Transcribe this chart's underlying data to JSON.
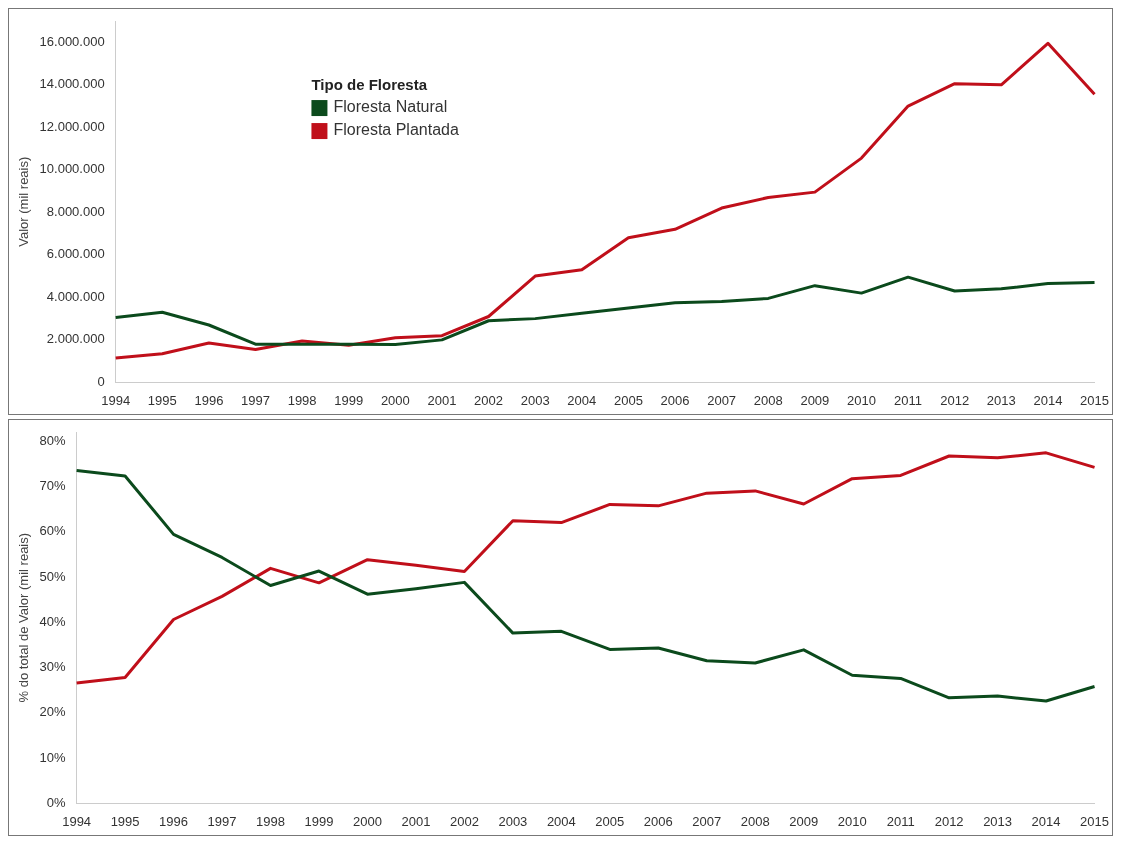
{
  "chart_data": [
    {
      "type": "line",
      "ylabel": "Valor (mil reais)",
      "legend_title": "Tipo de Floresta",
      "legend": "top left",
      "grid": false,
      "categories": [
        "1994",
        "1995",
        "1996",
        "1997",
        "1998",
        "1999",
        "2000",
        "2001",
        "2002",
        "2003",
        "2004",
        "2005",
        "2006",
        "2007",
        "2008",
        "2009",
        "2010",
        "2011",
        "2012",
        "2013",
        "2014",
        "2015"
      ],
      "ylim": [
        0,
        17000000
      ],
      "yticks": [
        {
          "value": 0,
          "label": "0"
        },
        {
          "value": 2000000,
          "label": "2.000.000"
        },
        {
          "value": 4000000,
          "label": "4.000.000"
        },
        {
          "value": 6000000,
          "label": "6.000.000"
        },
        {
          "value": 8000000,
          "label": "8.000.000"
        },
        {
          "value": 10000000,
          "label": "10.000.000"
        },
        {
          "value": 12000000,
          "label": "12.000.000"
        },
        {
          "value": 14000000,
          "label": "14.000.000"
        },
        {
          "value": 16000000,
          "label": "16.000.000"
        }
      ],
      "series": [
        {
          "name": "Floresta Natural",
          "color": "#0b4a1c",
          "values": [
            3050000,
            3300000,
            2700000,
            1800000,
            1800000,
            1800000,
            1780000,
            2000000,
            2900000,
            3000000,
            3250000,
            3500000,
            3750000,
            3800000,
            3950000,
            4550000,
            4200000,
            4950000,
            4300000,
            4400000,
            4650000,
            4700000
          ]
        },
        {
          "name": "Floresta Plantada",
          "color": "#c00f1a",
          "values": [
            1150000,
            1350000,
            1850000,
            1550000,
            1950000,
            1750000,
            2100000,
            2200000,
            3100000,
            5000000,
            5300000,
            6800000,
            7200000,
            8200000,
            8700000,
            8950000,
            10550000,
            13000000,
            14050000,
            14000000,
            15950000,
            13550000
          ]
        }
      ]
    },
    {
      "type": "line",
      "ylabel": "% do total de Valor (mil reais)",
      "grid": false,
      "categories": [
        "1994",
        "1995",
        "1996",
        "1997",
        "1998",
        "1999",
        "2000",
        "2001",
        "2002",
        "2003",
        "2004",
        "2005",
        "2006",
        "2007",
        "2008",
        "2009",
        "2010",
        "2011",
        "2012",
        "2013",
        "2014",
        "2015"
      ],
      "ylim": [
        0,
        82
      ],
      "yticks": [
        {
          "value": 0,
          "label": "0%"
        },
        {
          "value": 10,
          "label": "10%"
        },
        {
          "value": 20,
          "label": "20%"
        },
        {
          "value": 30,
          "label": "30%"
        },
        {
          "value": 40,
          "label": "40%"
        },
        {
          "value": 50,
          "label": "50%"
        },
        {
          "value": 60,
          "label": "60%"
        },
        {
          "value": 70,
          "label": "70%"
        },
        {
          "value": 80,
          "label": "80%"
        }
      ],
      "series": [
        {
          "color": "#0b4a1c",
          "values": [
            73.5,
            72.3,
            59.4,
            54.3,
            48.1,
            51.3,
            46.2,
            47.4,
            48.8,
            37.6,
            38.0,
            34.0,
            34.3,
            31.5,
            31.0,
            33.9,
            28.3,
            27.6,
            23.3,
            23.7,
            22.6,
            25.8
          ]
        },
        {
          "color": "#c00f1a",
          "values": [
            26.6,
            27.8,
            40.6,
            45.7,
            51.9,
            48.7,
            53.8,
            52.6,
            51.2,
            62.4,
            62.0,
            66.0,
            65.7,
            68.5,
            69.0,
            66.1,
            71.7,
            72.4,
            76.7,
            76.3,
            77.4,
            74.2
          ]
        }
      ]
    }
  ]
}
